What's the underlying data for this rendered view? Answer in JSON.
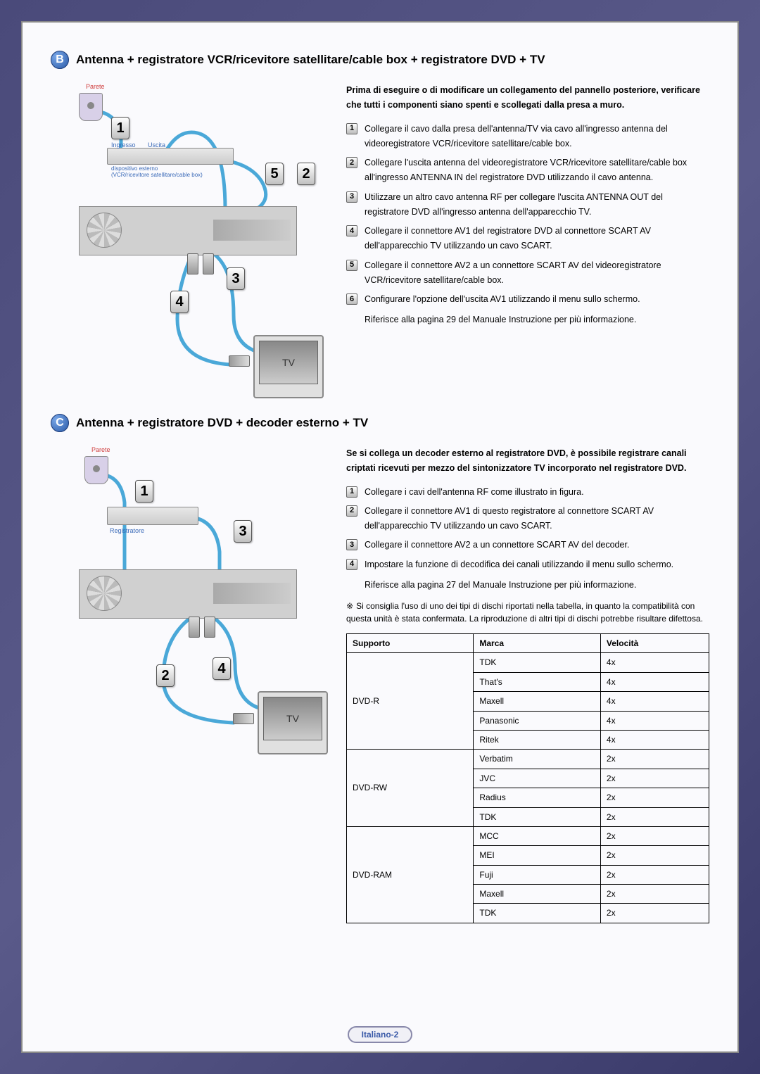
{
  "sectionB": {
    "badge": "B",
    "title": "Antenna + registratore VCR/ricevitore satellitare/cable box + registratore DVD + TV",
    "intro": "Prima di eseguire o di modificare un collegamento del pannello posteriore, verificare che tutti i componenti siano spenti e scollegati dalla presa a muro.",
    "steps": [
      "Collegare il cavo dalla presa dell'antenna/TV via cavo all'ingresso antenna del videoregistratore VCR/ricevitore satellitare/cable box.",
      "Collegare l'uscita antenna del videoregistratore VCR/ricevitore satellitare/cable box all'ingresso ANTENNA IN del registratore DVD utilizzando il cavo antenna.",
      "Utilizzare un altro cavo antenna RF per collegare l'uscita ANTENNA OUT del registratore DVD all'ingresso antenna dell'apparecchio TV.",
      "Collegare il connettore AV1 del registratore DVD al connettore SCART AV dell'apparecchio TV utilizzando un cavo SCART.",
      "Collegare il connettore AV2 a un connettore SCART AV del videoregistratore VCR/ricevitore satellitare/cable box.",
      "Configurare l'opzione dell'uscita AV1 utilizzando il menu sullo schermo."
    ],
    "ref": "Riferisce alla pagina 29 del Manuale Instruzione per più informazione.",
    "labels": {
      "parete": "Parete",
      "ingresso": "Ingresso",
      "uscita": "Uscita",
      "device": "dispositivo esterno\n(VCR/ricevitore satellitare/cable box)",
      "tv": "TV"
    }
  },
  "sectionC": {
    "badge": "C",
    "title": "Antenna + registratore DVD + decoder esterno + TV",
    "intro": "Se si collega un decoder esterno al registratore DVD, è possibile registrare canali criptati ricevuti per mezzo del sintonizzatore TV incorporato nel registratore DVD.",
    "steps": [
      "Collegare i cavi dell'antenna RF come illustrato in figura.",
      "Collegare il connettore AV1 di questo registratore al connettore SCART AV dell'apparecchio TV utilizzando un cavo SCART.",
      "Collegare il connettore AV2 a un connettore SCART AV del decoder.",
      "Impostare la funzione di decodifica dei canali utilizzando il menu sullo schermo."
    ],
    "ref": "Riferisce alla pagina 27 del Manuale Instruzione per più informazione.",
    "note": "Si consiglia l'uso di uno dei tipi di dischi riportati nella tabella, in quanto la compatibilità con questa unità è stata confermata. La riproduzione di altri tipi di dischi potrebbe risultare difettosa.",
    "labels": {
      "parete": "Parete",
      "registratore": "Registratore",
      "tv": "TV"
    }
  },
  "table": {
    "headers": [
      "Supporto",
      "Marca",
      "Velocità"
    ],
    "groups": [
      {
        "support": "DVD-R",
        "rows": [
          [
            "TDK",
            "4x"
          ],
          [
            "That's",
            "4x"
          ],
          [
            "Maxell",
            "4x"
          ],
          [
            "Panasonic",
            "4x"
          ],
          [
            "Ritek",
            "4x"
          ]
        ]
      },
      {
        "support": "DVD-RW",
        "rows": [
          [
            "Verbatim",
            "2x"
          ],
          [
            "JVC",
            "2x"
          ],
          [
            "Radius",
            "2x"
          ],
          [
            "TDK",
            "2x"
          ]
        ]
      },
      {
        "support": "DVD-RAM",
        "rows": [
          [
            "MCC",
            "2x"
          ],
          [
            "MEI",
            "2x"
          ],
          [
            "Fuji",
            "2x"
          ],
          [
            "Maxell",
            "2x"
          ],
          [
            "TDK",
            "2x"
          ]
        ]
      }
    ]
  },
  "footer": "Italiano-2",
  "colors": {
    "cable": "#4aa8d8",
    "accent": "#3a6ab8"
  }
}
